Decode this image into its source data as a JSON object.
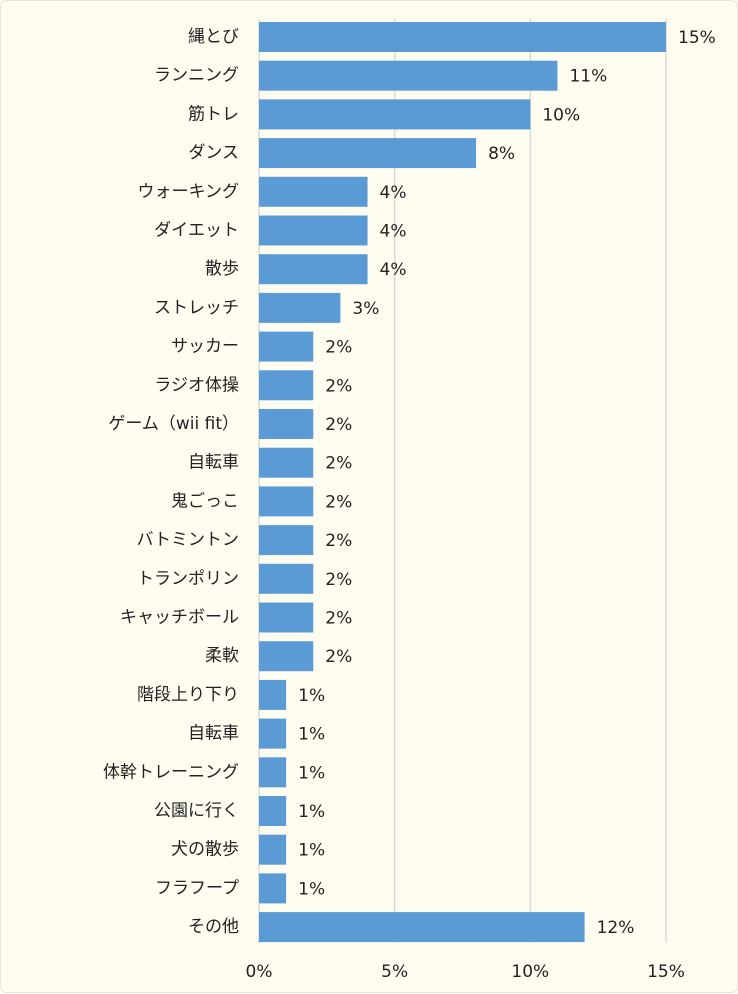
{
  "chart_data": {
    "type": "bar",
    "orientation": "horizontal",
    "categories": [
      "縄とび",
      "ランニング",
      "筋トレ",
      "ダンス",
      "ウォーキング",
      "ダイエット",
      "散歩",
      "ストレッチ",
      "サッカー",
      "ラジオ体操",
      "ゲーム（wii fit）",
      "自転車",
      "鬼ごっこ",
      "バトミントン",
      "トランポリン",
      "キャッチボール",
      "柔軟",
      "階段上り下り",
      "自転車",
      "体幹トレーニング",
      "公園に行く",
      "犬の散歩",
      "フラフープ",
      "その他"
    ],
    "values": [
      15,
      11,
      10,
      8,
      4,
      4,
      4,
      3,
      2,
      2,
      2,
      2,
      2,
      2,
      2,
      2,
      2,
      1,
      1,
      1,
      1,
      1,
      1,
      12
    ],
    "value_labels": [
      "15%",
      "11%",
      "10%",
      "8%",
      "4%",
      "4%",
      "4%",
      "3%",
      "2%",
      "2%",
      "2%",
      "2%",
      "2%",
      "2%",
      "2%",
      "2%",
      "2%",
      "1%",
      "1%",
      "1%",
      "1%",
      "1%",
      "1%",
      "12%"
    ],
    "x_ticks": [
      0,
      5,
      10,
      15
    ],
    "x_tick_labels": [
      "0%",
      "5%",
      "10%",
      "15%"
    ],
    "xlim": [
      0,
      15
    ],
    "grid": true,
    "legend": "none",
    "colors": {
      "bar": "#5b9bd5",
      "grid": "#d9d9d9",
      "background": "#fffdf0"
    }
  }
}
